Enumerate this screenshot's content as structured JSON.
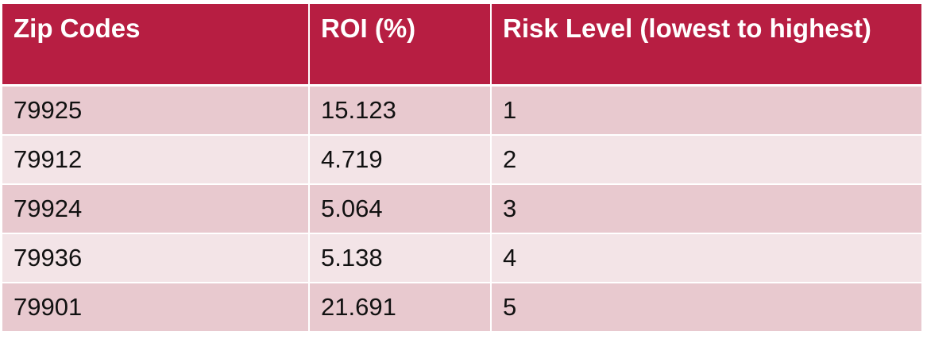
{
  "table": {
    "headers": [
      "Zip Codes",
      "ROI (%)",
      "Risk Level (lowest to highest)"
    ],
    "rows": [
      [
        "79925",
        "15.123",
        "1"
      ],
      [
        "79912",
        "4.719",
        "2"
      ],
      [
        "79924",
        "5.064",
        "3"
      ],
      [
        "79936",
        "5.138",
        "4"
      ],
      [
        "79901",
        "21.691",
        "5"
      ]
    ]
  },
  "colors": {
    "header_bg": "#b71e42",
    "row_dark": "#e8c9cf",
    "row_light": "#f3e4e7"
  }
}
